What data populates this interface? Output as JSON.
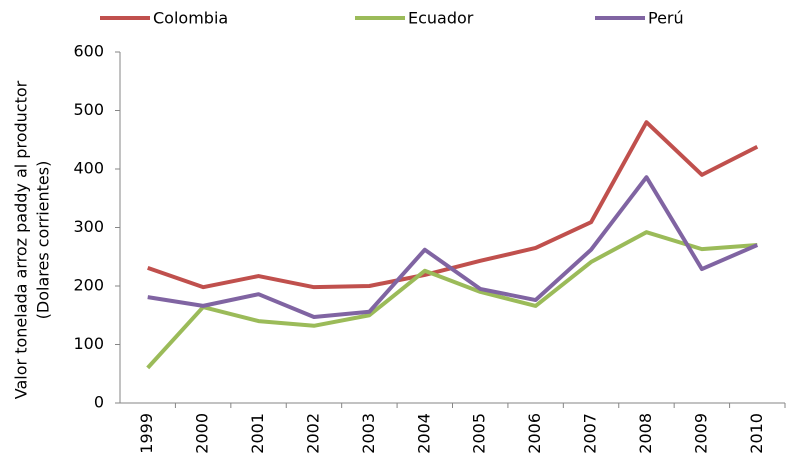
{
  "chart_data": {
    "type": "line",
    "ylabel": [
      "Valor tonelada arroz paddy al productor",
      "(Dolares corrientes)"
    ],
    "categories": [
      "1999",
      "2000",
      "2001",
      "2002",
      "2003",
      "2004",
      "2005",
      "2006",
      "2007",
      "2008",
      "2009",
      "2010"
    ],
    "series": [
      {
        "name": "Colombia",
        "color": "#c0504d",
        "values": [
          231,
          198,
          217,
          198,
          200,
          219,
          243,
          265,
          309,
          480,
          390,
          438
        ]
      },
      {
        "name": "Ecuador",
        "color": "#9bbb59",
        "values": [
          60,
          164,
          140,
          132,
          150,
          226,
          190,
          166,
          241,
          292,
          263,
          270
        ]
      },
      {
        "name": "Perú",
        "color": "#8064a2",
        "values": [
          181,
          166,
          186,
          147,
          156,
          262,
          195,
          176,
          262,
          386,
          229,
          270
        ]
      }
    ],
    "ylim": [
      0,
      600
    ],
    "yticks": [
      0,
      100,
      200,
      300,
      400,
      500,
      600
    ],
    "grid": false,
    "legend": "top"
  }
}
